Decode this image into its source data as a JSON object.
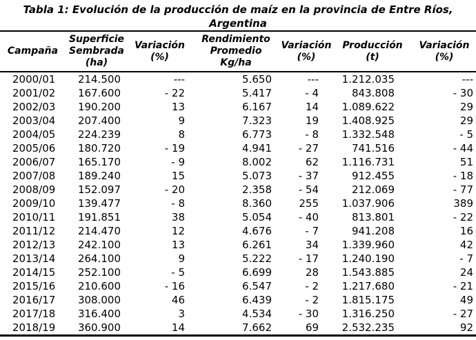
{
  "chart_data": {
    "type": "table",
    "title": "Tabla 1: Evolución de la producción de maíz en la provincia de Entre Ríos, Argentina",
    "title_line1": "Tabla 1: Evolución de la producción de maíz en la provincia de Entre Ríos,",
    "title_line2": "Argentina",
    "columns": [
      "Campaña",
      "Superficie\nSembrada\n(ha)",
      "Variación\n(%)",
      "Rendimiento\nPromedio\nKg/ha",
      "Variación\n(%)",
      "Producción\n(t)",
      "Variación\n(%)"
    ],
    "rows": [
      [
        "2000/01",
        "214.500",
        "---",
        "5.650",
        "---",
        "1.212.035",
        "---"
      ],
      [
        "2001/02",
        "167.600",
        "- 22",
        "5.417",
        "- 4",
        "843.808",
        "- 30"
      ],
      [
        "2002/03",
        "190.200",
        "13",
        "6.167",
        "14",
        "1.089.622",
        "29"
      ],
      [
        "2003/04",
        "207.400",
        "9",
        "7.323",
        "19",
        "1.408.925",
        "29"
      ],
      [
        "2004/05",
        "224.239",
        "8",
        "6.773",
        "- 8",
        "1.332.548",
        "- 5"
      ],
      [
        "2005/06",
        "180.720",
        "- 19",
        "4.941",
        "- 27",
        "741.516",
        "- 44"
      ],
      [
        "2006/07",
        "165.170",
        "- 9",
        "8.002",
        "62",
        "1.116.731",
        "51"
      ],
      [
        "2007/08",
        "189.240",
        "15",
        "5.073",
        "- 37",
        "912.455",
        "- 18"
      ],
      [
        "2008/09",
        "152.097",
        "- 20",
        "2.358",
        "- 54",
        "212.069",
        "- 77"
      ],
      [
        "2009/10",
        "139.477",
        "- 8",
        "8.360",
        "255",
        "1.037.906",
        "389"
      ],
      [
        "2010/11",
        "191.851",
        "38",
        "5.054",
        "- 40",
        "813.801",
        "- 22"
      ],
      [
        "2011/12",
        "214.470",
        "12",
        "4.676",
        "- 7",
        "941.208",
        "16"
      ],
      [
        "2012/13",
        "242.100",
        "13",
        "6.261",
        "34",
        "1.339.960",
        "42"
      ],
      [
        "2013/14",
        "264.100",
        "9",
        "5.222",
        "- 17",
        "1.240.190",
        "- 7"
      ],
      [
        "2014/15",
        "252.100",
        "- 5",
        "6.699",
        "28",
        "1.543.885",
        "24"
      ],
      [
        "2015/16",
        "210.600",
        "- 16",
        "6.547",
        "- 2",
        "1.217.680",
        "- 21"
      ],
      [
        "2016/17",
        "308.000",
        "46",
        "6.439",
        "- 2",
        "1.815.175",
        "49"
      ],
      [
        "2017/18",
        "316.400",
        "3",
        "4.534",
        "- 30",
        "1.316.250",
        "- 27"
      ],
      [
        "2018/19",
        "360.900",
        "14",
        "7.662",
        "69",
        "2.532.235",
        "92"
      ]
    ]
  },
  "colors": {
    "text": "#000000",
    "background": "#ffffff",
    "rule": "#000000"
  }
}
